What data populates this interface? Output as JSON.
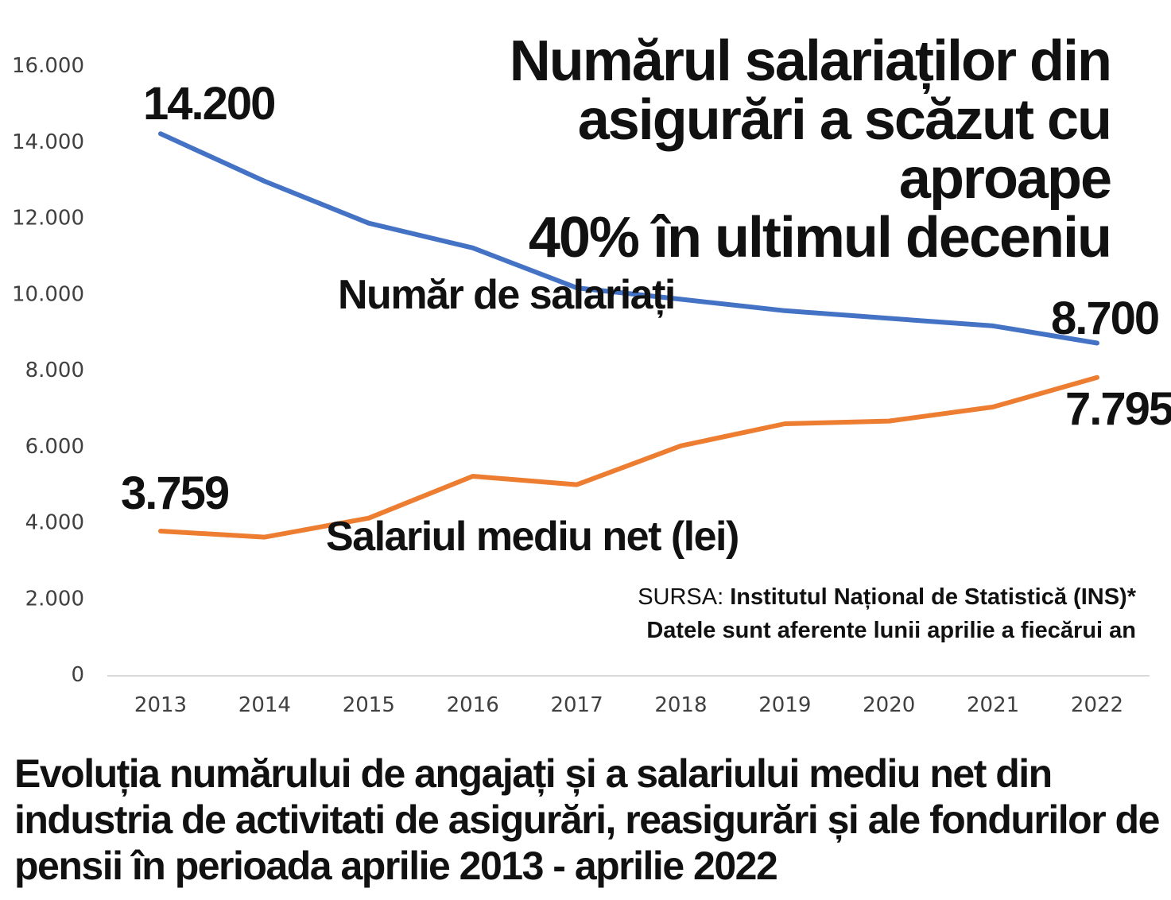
{
  "headline": {
    "line1": "Numărul salariaților din",
    "line2": "asigurări a scăzut cu aproape",
    "line3": "40% în ultimul deceniu"
  },
  "source": {
    "prefix": "SURSA: ",
    "name": "Institutul Național de Statistică (INS)*",
    "note": "Datele sunt aferente lunii aprilie a fiecărui an"
  },
  "caption": "Evoluția numărului de angajați și a salariului mediu net din industria de activitati de asigurări, reasigurări și ale fondurilor de pensii  în perioada aprilie 2013 - aprilie 2022",
  "chart_data": {
    "type": "line",
    "x": [
      "2013",
      "2014",
      "2015",
      "2016",
      "2017",
      "2018",
      "2019",
      "2020",
      "2021",
      "2022"
    ],
    "y_ticks": [
      "0",
      "2.000",
      "4.000",
      "6.000",
      "8.000",
      "10.000",
      "12.000",
      "14.000",
      "16.000"
    ],
    "ylim": [
      0,
      16000
    ],
    "grid": false,
    "series": [
      {
        "name": "Număr de salariați",
        "color": "#4472C4",
        "values": [
          14200,
          12950,
          11850,
          11200,
          10150,
          9850,
          9550,
          9350,
          9150,
          8700
        ],
        "start_label": "14.200",
        "end_label": "8.700"
      },
      {
        "name": "Salariul mediu net (lei)",
        "color": "#ED7D31",
        "values": [
          3759,
          3600,
          4100,
          5200,
          4980,
          6000,
          6580,
          6650,
          7020,
          7795
        ],
        "start_label": "3.759",
        "end_label": "7.795"
      }
    ]
  }
}
